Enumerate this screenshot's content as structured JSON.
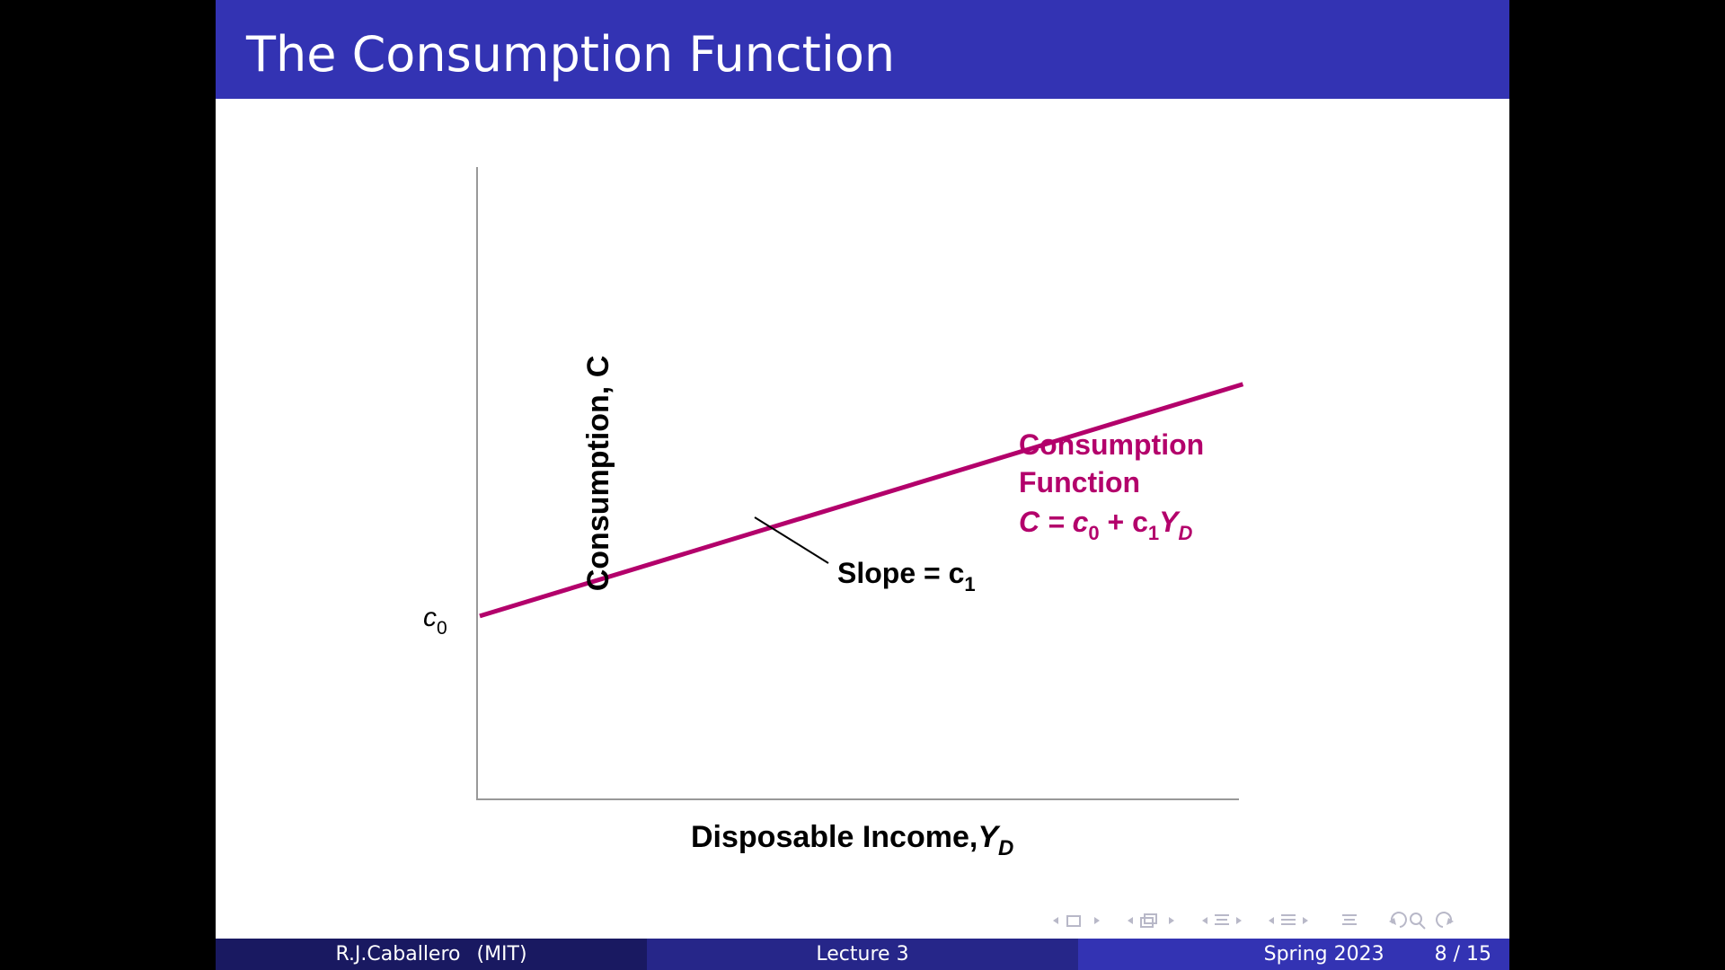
{
  "slide": {
    "title": "The Consumption Function"
  },
  "chart_data": {
    "type": "line",
    "ylabel": "Consumption, C",
    "xlabel_main": "Disposable Income,",
    "xlabel_var": "Y",
    "xlabel_sub": "D",
    "intercept_label": "c",
    "intercept_sub": "0",
    "slope_label": "Slope = c",
    "slope_sub": "1",
    "series": [
      {
        "label_line1": "Consumption",
        "label_line2": "Function",
        "equation": {
          "lhs": "C = c",
          "sub0": "0",
          "plus": " + c",
          "sub1": "1",
          "var": "Y",
          "sub_d": "D"
        },
        "color": "#b3006b",
        "x": [
          0,
          1
        ],
        "y": [
          0.29,
          0.76
        ]
      }
    ],
    "xlim": [
      0,
      1
    ],
    "ylim": [
      0,
      1
    ],
    "grid": false
  },
  "footer": {
    "author": "R.J.Caballero",
    "institution": "(MIT)",
    "lecture": "Lecture 3",
    "term": "Spring 2023",
    "page": "8 / 15"
  },
  "colors": {
    "title_bar": "#3333b3",
    "curve": "#b3006b",
    "footer_dark": "#191961",
    "footer_mid": "#262689"
  }
}
